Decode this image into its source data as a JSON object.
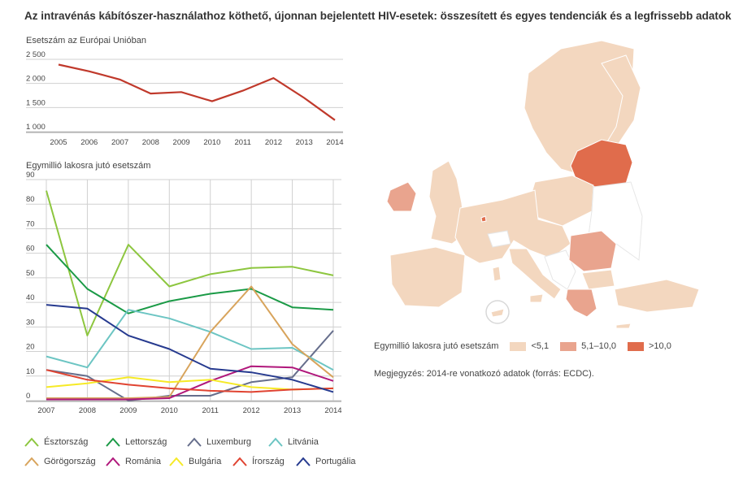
{
  "title": "Az intravénás kábítószer-használathoz köthető, újonnan bejelentett HIV-esetek: összesített és egyes tendenciák és a legfrissebb adatok",
  "colors": {
    "Észtország": "#8dc63f",
    "Lettország": "#1a9a46",
    "Luxemburg": "#666e8c",
    "Litvánia": "#6cc5c3",
    "Görögország": "#d8a45c",
    "Románia": "#b0177b",
    "Bulgária": "#f6ea26",
    "Írország": "#e04331",
    "Portugália": "#263a8f",
    "eu_line": "#c0392b",
    "map_low": "#f3d7bf",
    "map_mid": "#e9a48e",
    "map_high": "#e06c4c",
    "map_none": "#ffffff"
  },
  "chart_data": [
    {
      "type": "line",
      "title": "Esetszám az Európai Unióban",
      "x": [
        "2005",
        "2006",
        "2007",
        "2008",
        "2009",
        "2010",
        "2011",
        "2012",
        "2013",
        "2014"
      ],
      "yticks": [
        "1 000",
        "1 500",
        "2 000",
        "2 500"
      ],
      "ylim": [
        1000,
        2500
      ],
      "series": [
        {
          "values": [
            2390,
            2250,
            2080,
            1790,
            1820,
            1630,
            1850,
            2110,
            1700,
            1240
          ]
        }
      ]
    },
    {
      "type": "line",
      "title": "Egymillió lakosra jutó esetszám",
      "x": [
        "2007",
        "2008",
        "2009",
        "2010",
        "2011",
        "2012",
        "2013",
        "2014"
      ],
      "yticks": [
        "0",
        "10",
        "20",
        "30",
        "40",
        "50",
        "60",
        "70",
        "80",
        "90"
      ],
      "ylim": [
        0,
        90
      ],
      "series": [
        {
          "name": "Észtország",
          "values": [
            85.5,
            26.5,
            63.5,
            46.5,
            51.5,
            54.0,
            54.5,
            51.0
          ]
        },
        {
          "name": "Lettország",
          "values": [
            63.5,
            45.5,
            35.5,
            40.5,
            43.5,
            45.5,
            38.0,
            37.0
          ]
        },
        {
          "name": "Luxemburg",
          "values": [
            12.5,
            10.0,
            0.0,
            2.0,
            2.0,
            7.5,
            9.5,
            28.5
          ]
        },
        {
          "name": "Litvánia",
          "values": [
            18.0,
            13.5,
            37.0,
            33.5,
            28.0,
            21.0,
            21.5,
            12.5
          ]
        },
        {
          "name": "Görögország",
          "values": [
            1.0,
            1.0,
            1.0,
            1.5,
            28.0,
            46.5,
            23.0,
            9.5
          ]
        },
        {
          "name": "Románia",
          "values": [
            0.5,
            0.5,
            0.5,
            1.0,
            8.0,
            14.0,
            13.5,
            8.0
          ]
        },
        {
          "name": "Bulgária",
          "values": [
            5.5,
            7.0,
            9.5,
            7.5,
            8.5,
            5.5,
            4.5,
            5.0
          ]
        },
        {
          "name": "Írország",
          "values": [
            12.5,
            8.5,
            6.5,
            5.0,
            4.0,
            3.5,
            4.5,
            5.0
          ]
        },
        {
          "name": "Portugália",
          "values": [
            39.0,
            37.5,
            26.5,
            21.0,
            13.0,
            11.5,
            8.5,
            3.5
          ]
        }
      ]
    }
  ],
  "map": {
    "legend_title": "Egymillió lakosra jutó esetszám",
    "legend": [
      {
        "label": "<5,1",
        "color": "#f3d7bf"
      },
      {
        "label": "5,1–10,0",
        "color": "#e9a48e"
      },
      {
        "label": ">10,0",
        "color": "#e06c4c"
      }
    ],
    "note": "Megjegyzés: 2014-re vonatkozó adatok (forrás: ECDC)."
  }
}
